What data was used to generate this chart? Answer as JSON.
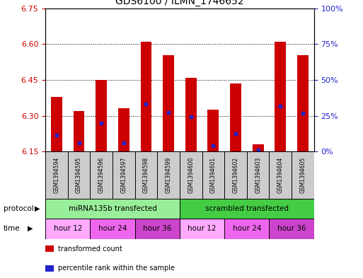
{
  "title": "GDS6100 / ILMN_1746652",
  "samples": [
    "GSM1394594",
    "GSM1394595",
    "GSM1394596",
    "GSM1394597",
    "GSM1394598",
    "GSM1394599",
    "GSM1394600",
    "GSM1394601",
    "GSM1394602",
    "GSM1394603",
    "GSM1394604",
    "GSM1394605"
  ],
  "bar_tops": [
    6.38,
    6.32,
    6.45,
    6.33,
    6.61,
    6.555,
    6.46,
    6.325,
    6.435,
    6.18,
    6.61,
    6.555
  ],
  "blue_dot_y": [
    6.22,
    6.185,
    6.27,
    6.185,
    6.35,
    6.315,
    6.295,
    6.175,
    6.225,
    6.155,
    6.34,
    6.31
  ],
  "bar_bottom": 6.15,
  "ylim": [
    6.15,
    6.75
  ],
  "yticks": [
    6.15,
    6.3,
    6.45,
    6.6,
    6.75
  ],
  "right_yticks": [
    0,
    25,
    50,
    75,
    100
  ],
  "bar_color": "#cc0000",
  "blue_dot_color": "#2222cc",
  "protocol_groups": [
    {
      "label": "miRNA135b transfected",
      "start": 0,
      "end": 6,
      "color": "#99ee99"
    },
    {
      "label": "scrambled transfected",
      "start": 6,
      "end": 12,
      "color": "#44cc44"
    }
  ],
  "time_groups": [
    {
      "label": "hour 12",
      "start": 0,
      "end": 2,
      "color": "#ffaaff"
    },
    {
      "label": "hour 24",
      "start": 2,
      "end": 4,
      "color": "#ee66ee"
    },
    {
      "label": "hour 36",
      "start": 4,
      "end": 6,
      "color": "#cc44cc"
    },
    {
      "label": "hour 12",
      "start": 6,
      "end": 8,
      "color": "#ffaaff"
    },
    {
      "label": "hour 24",
      "start": 8,
      "end": 10,
      "color": "#ee66ee"
    },
    {
      "label": "hour 36",
      "start": 10,
      "end": 12,
      "color": "#cc44cc"
    }
  ],
  "legend_items": [
    {
      "label": "transformed count",
      "color": "#cc0000"
    },
    {
      "label": "percentile rank within the sample",
      "color": "#2222cc"
    }
  ],
  "bg_color": "#ffffff",
  "left_tick_color": "#cc0000",
  "right_tick_color": "#2222cc",
  "sample_box_color": "#cccccc"
}
